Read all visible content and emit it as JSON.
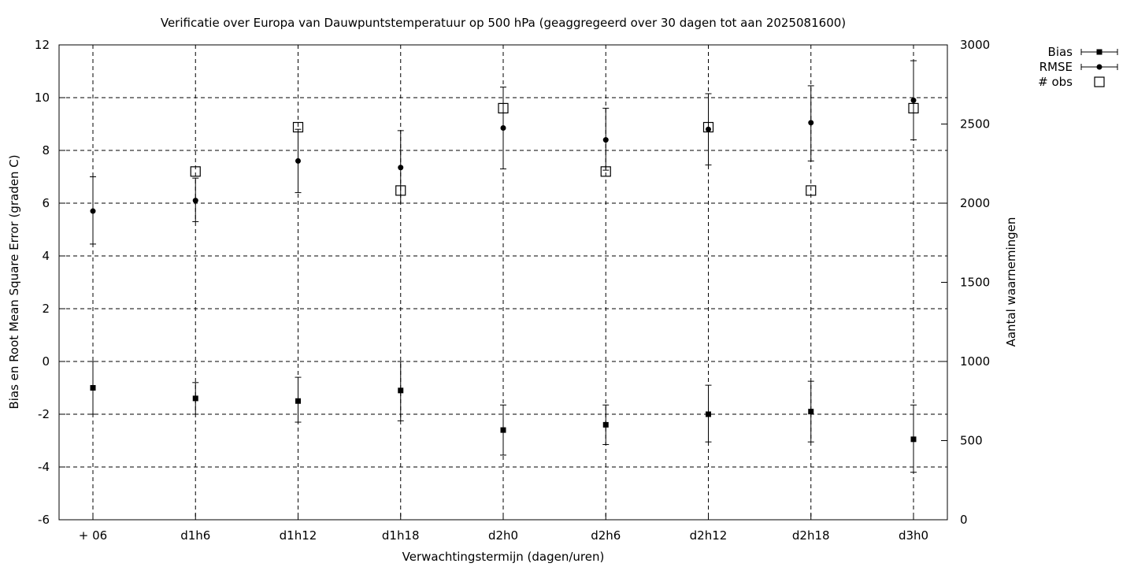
{
  "chart_data": {
    "type": "scatter",
    "title": "Verificatie over Europa van Dauwpuntstemperatuur op 500 hPa (geaggregeerd over 30 dagen tot aan 2025081600)",
    "xlabel": "Verwachtingstermijn (dagen/uren)",
    "ylabel": "Bias en Root Mean Square Error (graden C)",
    "y2label": "Aantal waarnemingen",
    "categories": [
      "+ 06",
      "d1h6",
      "d1h12",
      "d1h18",
      "d2h0",
      "d2h6",
      "d2h12",
      "d2h18",
      "d3h0"
    ],
    "ylim": [
      -6,
      12
    ],
    "yticks": [
      -6,
      -4,
      -2,
      0,
      2,
      4,
      6,
      8,
      10,
      12
    ],
    "y2lim": [
      0,
      3000
    ],
    "y2ticks": [
      0,
      500,
      1000,
      1500,
      2000,
      2500,
      3000
    ],
    "grid": true,
    "legend_position": "top-right, outside plot",
    "series": [
      {
        "name": "Bias",
        "marker": "filled-square",
        "axis": "left",
        "values": [
          -1.0,
          -1.4,
          -1.5,
          -1.1,
          -2.6,
          -2.4,
          -2.0,
          -1.9,
          -2.95
        ],
        "err_low": [
          -2.0,
          -2.0,
          -2.3,
          -2.25,
          -3.55,
          -3.15,
          -3.05,
          -3.05,
          -4.2
        ],
        "err_high": [
          0.0,
          -0.8,
          -0.6,
          0.0,
          -1.65,
          -1.65,
          -0.9,
          -0.75,
          -1.65
        ]
      },
      {
        "name": "RMSE",
        "marker": "filled-circle",
        "axis": "left",
        "values": [
          5.7,
          6.1,
          7.6,
          7.35,
          8.85,
          8.4,
          8.8,
          9.05,
          9.9
        ],
        "err_low": [
          4.45,
          5.3,
          6.4,
          6.0,
          7.3,
          7.25,
          7.45,
          7.6,
          8.4
        ],
        "err_high": [
          7.0,
          6.95,
          8.8,
          8.75,
          10.4,
          9.6,
          10.15,
          10.45,
          11.4
        ]
      },
      {
        "name": "# obs",
        "marker": "open-square",
        "axis": "right",
        "values": [
          null,
          2200,
          2480,
          2080,
          2600,
          2200,
          2480,
          2080,
          2600
        ]
      }
    ]
  }
}
